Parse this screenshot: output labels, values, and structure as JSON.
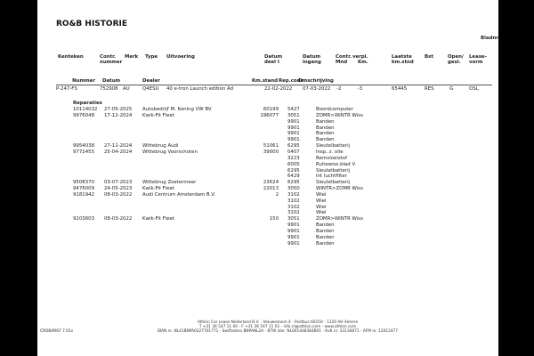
{
  "title": "RO&B HISTORIE",
  "page_label": "Bladnr",
  "headers_top": {
    "kenteken": "Kenteken",
    "contr_nummer": [
      "Contr.",
      "nummer"
    ],
    "merk": "Merk",
    "type": "Type",
    "uitvoering": "Uitvoering",
    "datum_deel": [
      "Datum",
      "deel I"
    ],
    "datum_ingang": [
      "Datum",
      "ingang"
    ],
    "contr_mnd": [
      "Contr.",
      "Mnd"
    ],
    "verpl_km": [
      "verpl.",
      "Km."
    ],
    "laatste_km": [
      "Laatste",
      "km.stnd"
    ],
    "bst": "Bst",
    "open_gesl": [
      "Open/",
      "gesl."
    ],
    "lease_vorm": [
      "Lease-",
      "vorm"
    ]
  },
  "headers_sub": {
    "nummer": "Nummer",
    "datum": "Datum",
    "dealer": "Dealer",
    "km_stand": "Km.stand",
    "rep_code": "Rep.code",
    "omschrijving": "Omschrijving"
  },
  "vehicle": {
    "kenteken": "P-247-FS",
    "contr_nummer": "752908",
    "merk": "AU",
    "type": "Q4ESU",
    "uitvoering": "40 e-tron Launch edition Ad",
    "datum_deel": "22-02-2022",
    "datum_ingang": "07-03-2022",
    "contr_mnd": "-2",
    "verpl_km": "-3",
    "laatste_km": "65445",
    "bst": "RES",
    "open_gesl": "G",
    "lease_vorm": "OSL"
  },
  "repairs_label": "Reparaties",
  "repairs": [
    {
      "nummer": "10114032",
      "datum": "27-05-2025",
      "dealer": "Autobedrijf M. Koning VW BV",
      "km": "60199",
      "code": "5427",
      "omschrijving": "Boordcomputer"
    },
    {
      "nummer": "9976048",
      "datum": "17-12-2024",
      "dealer": "Kwik-Fit Fleet",
      "km": "196077",
      "code": "3051",
      "omschrijving": "ZOMR>WINTR Wiss"
    },
    {
      "nummer": "",
      "datum": "",
      "dealer": "",
      "km": "",
      "code": "9901",
      "omschrijving": "Banden"
    },
    {
      "nummer": "",
      "datum": "",
      "dealer": "",
      "km": "",
      "code": "9901",
      "omschrijving": "Banden"
    },
    {
      "nummer": "",
      "datum": "",
      "dealer": "",
      "km": "",
      "code": "9901",
      "omschrijving": "Banden"
    },
    {
      "nummer": "",
      "datum": "",
      "dealer": "",
      "km": "",
      "code": "9901",
      "omschrijving": "Banden"
    },
    {
      "nummer": "9954038",
      "datum": "27-11-2024",
      "dealer": "Wittebrug Audi",
      "km": "51061",
      "code": "6295",
      "omschrijving": "Sleutelbatterij"
    },
    {
      "nummer": "9772455",
      "datum": "25-04-2024",
      "dealer": "Wittebrug Voorschoten",
      "km": "39000",
      "code": "0407",
      "omschrijving": "Insp. z. olie"
    },
    {
      "nummer": "",
      "datum": "",
      "dealer": "",
      "km": "",
      "code": "3223",
      "omschrijving": "Remvloeistof"
    },
    {
      "nummer": "",
      "datum": "",
      "dealer": "",
      "km": "",
      "code": "6005",
      "omschrijving": "Ruitewiss.blad V"
    },
    {
      "nummer": "",
      "datum": "",
      "dealer": "",
      "km": "",
      "code": "6295",
      "omschrijving": "Sleutelbatterij"
    },
    {
      "nummer": "",
      "datum": "",
      "dealer": "",
      "km": "",
      "code": "6429",
      "omschrijving": "Int luchtfilter"
    },
    {
      "nummer": "9508370",
      "datum": "03-07-2023",
      "dealer": "Wittebrug Zoetermeer",
      "km": "23624",
      "code": "6295",
      "omschrijving": "Sleutelbatterij"
    },
    {
      "nummer": "9476009",
      "datum": "24-05-2023",
      "dealer": "Kwik-Fit Fleet",
      "km": "22013",
      "code": "3050",
      "omschrijving": "WINTR>ZOMR Wiss"
    },
    {
      "nummer": "9181942",
      "datum": "08-03-2022",
      "dealer": "Audi Centrum Amsterdam B.V.",
      "km": "2",
      "code": "3102",
      "omschrijving": "Wiel"
    },
    {
      "nummer": "",
      "datum": "",
      "dealer": "",
      "km": "",
      "code": "3102",
      "omschrijving": "Wiel"
    },
    {
      "nummer": "",
      "datum": "",
      "dealer": "",
      "km": "",
      "code": "3102",
      "omschrijving": "Wiel"
    },
    {
      "nummer": "",
      "datum": "",
      "dealer": "",
      "km": "",
      "code": "3102",
      "omschrijving": "Wiel"
    },
    {
      "nummer": "9103603",
      "datum": "08-03-2022",
      "dealer": "Kwik-Fit Fleet",
      "km": "150",
      "code": "3051",
      "omschrijving": "ZOMR>WINTR Wiss"
    },
    {
      "nummer": "",
      "datum": "",
      "dealer": "",
      "km": "",
      "code": "9901",
      "omschrijving": "Banden"
    },
    {
      "nummer": "",
      "datum": "",
      "dealer": "",
      "km": "",
      "code": "9901",
      "omschrijving": "Banden"
    },
    {
      "nummer": "",
      "datum": "",
      "dealer": "",
      "km": "",
      "code": "9901",
      "omschrijving": "Banden"
    },
    {
      "nummer": "",
      "datum": "",
      "dealer": "",
      "km": "",
      "code": "9901",
      "omschrijving": "Banden"
    }
  ],
  "footer": {
    "line1": "Athlon Car Lease Nederland B.V. - Veluwezoom 4 - Postbus 60250 - 1320 AH  Almere",
    "line2": "T +31 36 547 11 00 - F +31 36 547 11 01 - info.nl@athlon.com - www.athlon.com",
    "line3": "IBAN nr. NL41BNPA0227701771 - Swiftadres BNPANL2A - BTW idnr. NL001448384B01 - KvK nr. 33136871 - AFM nr. 12012477",
    "form_code": "CROBAR67 7.01v"
  }
}
